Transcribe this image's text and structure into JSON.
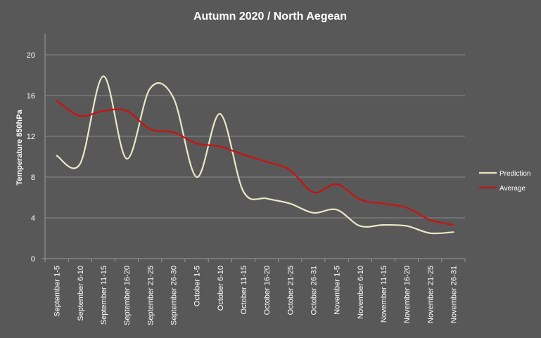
{
  "chart_data": {
    "type": "line",
    "title": "Autumn 2020 / North Aegean",
    "xlabel": "",
    "ylabel": "Temperature 850hPa",
    "ylim": [
      0,
      20
    ],
    "yticks": [
      0,
      4,
      8,
      12,
      16,
      20
    ],
    "grid": true,
    "legend_position": "right",
    "categories": [
      "September 1-5",
      "September 6-10",
      "September 11-15",
      "September 16-20",
      "September 21-25",
      "September 26-30",
      "October 1-5",
      "October 6-10",
      "October 11-15",
      "October 16-20",
      "October 21-25",
      "October 26-31",
      "November 1-5",
      "November 6-10",
      "November 11-15",
      "November 16-20",
      "November 21-25",
      "November 26-31"
    ],
    "series": [
      {
        "name": "Prediction",
        "color": "#e8e8c8",
        "values": [
          10.1,
          9.3,
          17.9,
          9.8,
          16.7,
          15.8,
          8.0,
          14.2,
          6.6,
          5.9,
          5.4,
          4.5,
          4.8,
          3.2,
          3.3,
          3.2,
          2.5,
          2.6
        ]
      },
      {
        "name": "Average",
        "color": "#cc1111",
        "values": [
          15.5,
          14.0,
          14.5,
          14.5,
          12.7,
          12.4,
          11.3,
          11.0,
          10.2,
          9.5,
          8.7,
          6.5,
          7.3,
          5.8,
          5.4,
          5.0,
          3.8,
          3.3
        ]
      }
    ]
  }
}
